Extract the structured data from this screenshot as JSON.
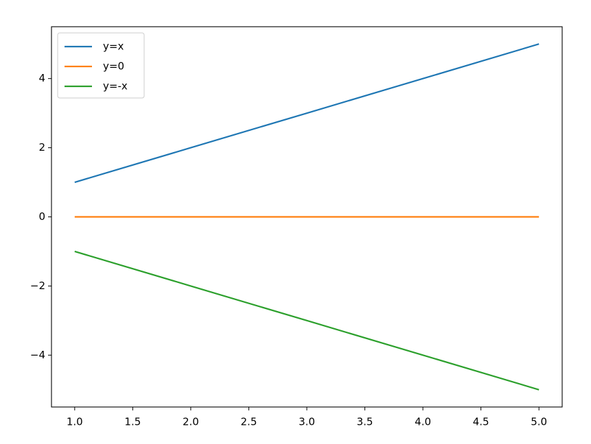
{
  "chart_data": {
    "type": "line",
    "x": [
      1,
      2,
      3,
      4,
      5
    ],
    "series": [
      {
        "name": "y=x",
        "color": "#1f77b4",
        "values": [
          1,
          2,
          3,
          4,
          5
        ]
      },
      {
        "name": "y=0",
        "color": "#ff7f0e",
        "values": [
          0,
          0,
          0,
          0,
          0
        ]
      },
      {
        "name": "y=-x",
        "color": "#2ca02c",
        "values": [
          -1,
          -2,
          -3,
          -4,
          -5
        ]
      }
    ],
    "xlim": [
      0.8,
      5.2
    ],
    "xticks": [
      {
        "value": 1,
        "label": "1.0"
      },
      1.5,
      {
        "value": 2,
        "label": "2.0"
      },
      2.5,
      {
        "value": 3,
        "label": "3.0"
      },
      3.5,
      {
        "value": 4,
        "label": "4.0"
      },
      4.5,
      {
        "value": 5,
        "label": "5.0"
      }
    ],
    "ylim": [
      -5.5,
      5.5
    ],
    "yticks": [
      {
        "value": -4,
        "label": "−4"
      },
      {
        "value": -2,
        "label": "−2"
      },
      0,
      2,
      4
    ],
    "grid": false,
    "legend": "upper-left"
  }
}
